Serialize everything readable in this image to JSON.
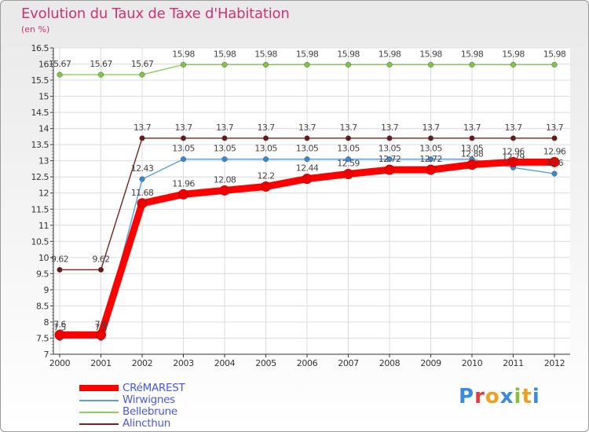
{
  "title": "Evolution du Taux de Taxe d'Habitation",
  "subtitle": "(en %)",
  "logo": {
    "text": "Proxiti",
    "colors": [
      "#3a8be0",
      "#e03a3a",
      "#f0a020",
      "#3a8be0",
      "#8ac030",
      "#f0a020",
      "#3a8be0"
    ]
  },
  "chart_data": {
    "type": "line",
    "x": [
      "2000",
      "2001",
      "2002",
      "2003",
      "2004",
      "2005",
      "2006",
      "2007",
      "2008",
      "2009",
      "2010",
      "2011",
      "2012"
    ],
    "ylim": [
      7,
      16.5
    ],
    "yticks": [
      "7",
      "7.5",
      "8",
      "8.5",
      "9",
      "9.5",
      "10",
      "10.5",
      "11",
      "11.5",
      "12",
      "12.5",
      "13",
      "13.5",
      "14",
      "14.5",
      "15",
      "15.5",
      "16",
      "16.5"
    ],
    "grid": true,
    "legend_position": "bottom-left",
    "series": [
      {
        "name": "Bellebrune",
        "color": "#8ad05a",
        "dot": "#7cc840",
        "values": [
          15.67,
          15.67,
          15.67,
          15.98,
          15.98,
          15.98,
          15.98,
          15.98,
          15.98,
          15.98,
          15.98,
          15.98,
          15.98
        ],
        "labels": [
          "15.67",
          "15.67",
          "15.67",
          "15.98",
          "15.98",
          "15.98",
          "15.98",
          "15.98",
          "15.98",
          "15.98",
          "15.98",
          "15.98",
          "15.98"
        ]
      },
      {
        "name": "Alincthun",
        "color": "#7a2020",
        "dot": "#6a1818",
        "values": [
          9.62,
          9.62,
          13.7,
          13.7,
          13.7,
          13.7,
          13.7,
          13.7,
          13.7,
          13.7,
          13.7,
          13.7,
          13.7
        ],
        "labels": [
          "9.62",
          "9.62",
          "13.7",
          "13.7",
          "13.7",
          "13.7",
          "13.7",
          "13.7",
          "13.7",
          "13.7",
          "13.7",
          "13.7",
          "13.7"
        ]
      },
      {
        "name": "Wirwignes",
        "color": "#5aa0d8",
        "dot": "#3a88d0",
        "values": [
          7.5,
          7.5,
          12.43,
          13.05,
          13.05,
          13.05,
          13.05,
          13.05,
          13.05,
          13.05,
          13.05,
          12.79,
          12.6
        ],
        "labels": [
          "7.5",
          "7.5",
          "12.43",
          "13.05",
          "13.05",
          "13.05",
          "13.05",
          "13.05",
          "13.05",
          "13.05",
          "13.05",
          "12.79",
          "12.6"
        ]
      },
      {
        "name": "CRéMAREST",
        "color": "#ff0000",
        "dot": "#ee0000",
        "values": [
          7.6,
          7.6,
          11.68,
          11.96,
          12.08,
          12.2,
          12.44,
          12.59,
          12.72,
          12.72,
          12.88,
          12.96,
          12.96
        ],
        "labels": [
          "7.6",
          "7.6",
          "11.68",
          "11.96",
          "12.08",
          "12.2",
          "12.44",
          "12.59",
          "12.72",
          "12.72",
          "12.88",
          "12.96",
          "12.96"
        ]
      }
    ],
    "legend": [
      {
        "name": "CRéMAREST",
        "color": "#ff0000",
        "thick": true
      },
      {
        "name": "Wirwignes",
        "color": "#5aa0d8",
        "thick": false
      },
      {
        "name": "Bellebrune",
        "color": "#8ad05a",
        "thick": false
      },
      {
        "name": "Alincthun",
        "color": "#7a2020",
        "thick": false
      }
    ]
  }
}
